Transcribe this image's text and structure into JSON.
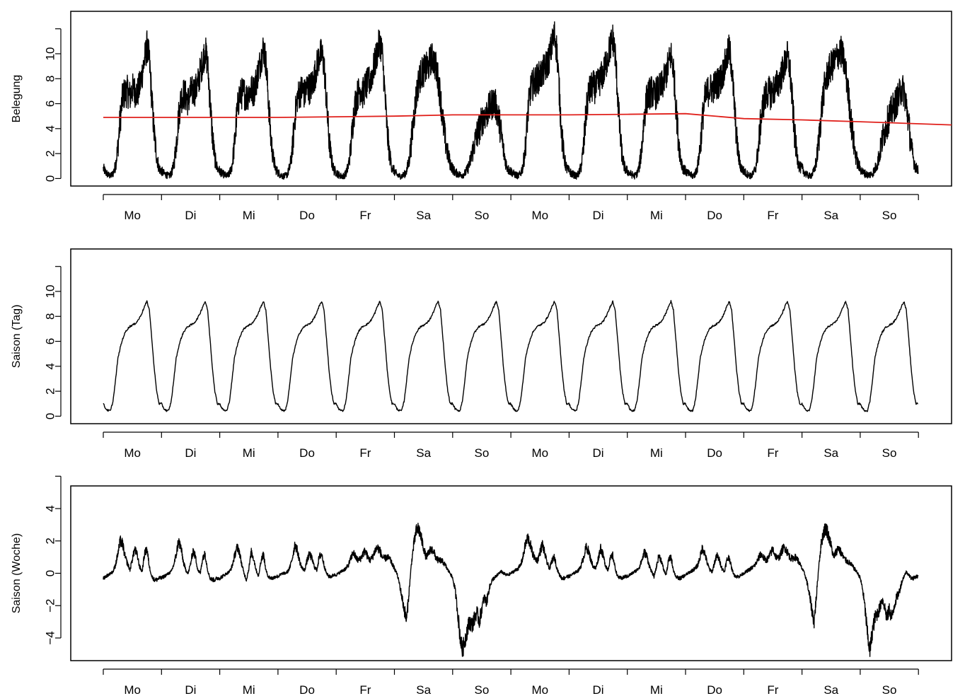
{
  "chart_data": [
    {
      "type": "line",
      "ylabel": "Belegung",
      "yticks": [
        0,
        2,
        4,
        6,
        8,
        10
      ],
      "ylim": [
        -0.6,
        13.4
      ],
      "weekdays": [
        "Mo",
        "Di",
        "Mi",
        "Do",
        "Fr",
        "Sa",
        "So",
        "Mo",
        "Di",
        "Mi",
        "Do",
        "Fr",
        "Sa",
        "So"
      ],
      "grid": false,
      "series": [
        {
          "color": "#000000",
          "day_profiles": [
            [
              0.8,
              0.5,
              0.3,
              0.2,
              0.4,
              1.0,
              2.5,
              4.8,
              6.6,
              6.9,
              7.0,
              6.6,
              7.2,
              7.0,
              6.8,
              7.4,
              8.4,
              9.5,
              10.6,
              9.5,
              6.4,
              3.5,
              1.8,
              0.8
            ],
            [
              0.6,
              0.4,
              0.3,
              0.2,
              0.4,
              1.0,
              2.6,
              4.9,
              6.4,
              6.8,
              6.6,
              6.2,
              6.9,
              7.0,
              7.1,
              7.6,
              8.6,
              9.4,
              10.3,
              9.2,
              6.2,
              3.4,
              1.6,
              0.8
            ],
            [
              0.6,
              0.4,
              0.3,
              0.2,
              0.4,
              1.0,
              2.6,
              5.0,
              6.6,
              6.8,
              6.9,
              6.5,
              6.9,
              7.1,
              7.0,
              7.8,
              8.7,
              9.6,
              10.5,
              9.4,
              6.5,
              3.4,
              1.7,
              0.8
            ],
            [
              0.5,
              0.3,
              0.2,
              0.2,
              0.4,
              1.0,
              2.5,
              5.0,
              6.5,
              6.9,
              7.2,
              6.7,
              7.4,
              7.2,
              7.5,
              8.1,
              9.0,
              9.8,
              10.0,
              9.1,
              6.2,
              3.2,
              1.6,
              0.7
            ],
            [
              0.5,
              0.3,
              0.2,
              0.2,
              0.4,
              1.0,
              2.4,
              4.8,
              6.2,
              6.8,
              7.2,
              6.8,
              7.4,
              7.6,
              7.9,
              8.5,
              9.3,
              10.2,
              11.0,
              10.0,
              7.0,
              3.8,
              1.9,
              0.9
            ],
            [
              0.6,
              0.3,
              0.2,
              0.2,
              0.3,
              0.6,
              1.4,
              3.0,
              5.0,
              6.6,
              7.8,
              8.4,
              8.6,
              8.8,
              9.0,
              9.6,
              9.6,
              9.0,
              8.0,
              6.5,
              4.5,
              3.0,
              2.0,
              1.2
            ],
            [
              0.8,
              0.5,
              0.4,
              0.3,
              0.3,
              0.4,
              0.7,
              1.2,
              2.0,
              2.8,
              3.5,
              4.0,
              4.6,
              5.0,
              5.2,
              5.6,
              5.9,
              6.2,
              5.7,
              4.8,
              3.6,
              2.2,
              1.2,
              0.7
            ],
            [
              0.6,
              0.4,
              0.3,
              0.2,
              0.4,
              1.0,
              2.6,
              5.2,
              7.0,
              7.5,
              7.8,
              8.0,
              8.2,
              8.5,
              8.8,
              9.2,
              9.8,
              10.8,
              11.5,
              10.2,
              6.8,
              3.5,
              1.6,
              0.8
            ],
            [
              0.6,
              0.4,
              0.3,
              0.2,
              0.4,
              1.0,
              2.6,
              5.2,
              6.8,
              7.2,
              7.4,
              7.2,
              7.6,
              8.0,
              8.4,
              9.0,
              9.8,
              10.6,
              11.2,
              10.0,
              6.8,
              3.5,
              1.6,
              0.8
            ],
            [
              0.6,
              0.4,
              0.3,
              0.2,
              0.4,
              1.0,
              2.6,
              5.0,
              6.4,
              6.8,
              7.0,
              6.6,
              6.9,
              7.1,
              7.3,
              7.8,
              8.4,
              9.2,
              9.9,
              8.8,
              6.0,
              3.3,
              1.6,
              0.8
            ],
            [
              0.6,
              0.4,
              0.3,
              0.2,
              0.4,
              1.0,
              2.5,
              4.8,
              6.4,
              6.9,
              7.2,
              7.2,
              7.4,
              7.6,
              7.8,
              8.2,
              8.9,
              9.6,
              10.4,
              9.0,
              6.2,
              3.3,
              1.6,
              0.8
            ],
            [
              0.6,
              0.4,
              0.3,
              0.2,
              0.4,
              1.0,
              2.4,
              4.6,
              6.0,
              6.6,
              7.0,
              6.8,
              7.0,
              7.3,
              7.6,
              8.0,
              8.6,
              9.2,
              9.8,
              8.8,
              6.2,
              3.4,
              1.8,
              0.9
            ],
            [
              0.8,
              0.5,
              0.3,
              0.2,
              0.3,
              0.6,
              1.5,
              3.2,
              5.4,
              7.0,
              8.0,
              8.6,
              9.0,
              9.2,
              9.6,
              10.0,
              10.2,
              9.6,
              8.6,
              7.0,
              5.0,
              3.3,
              2.0,
              1.2
            ],
            [
              0.8,
              0.5,
              0.4,
              0.3,
              0.3,
              0.4,
              0.7,
              1.2,
              2.0,
              3.0,
              3.8,
              4.4,
              5.0,
              5.4,
              5.8,
              6.2,
              6.6,
              7.2,
              7.0,
              5.9,
              4.4,
              2.6,
              1.5,
              0.8
            ]
          ]
        },
        {
          "color": "#e0201b",
          "x": [
            0,
            1,
            2,
            3,
            4,
            5,
            6,
            7,
            8,
            9,
            10,
            11,
            12,
            13,
            14
          ],
          "values": [
            4.9,
            4.9,
            4.9,
            4.9,
            4.95,
            5.0,
            5.1,
            5.1,
            5.1,
            5.15,
            5.2,
            4.8,
            4.7,
            4.55,
            4.3
          ]
        }
      ]
    },
    {
      "type": "line",
      "ylabel": "Saison (Tag)",
      "yticks": [
        0,
        2,
        4,
        6,
        8,
        10
      ],
      "ylim": [
        -0.6,
        13.4
      ],
      "weekdays": [
        "Mo",
        "Di",
        "Mi",
        "Do",
        "Fr",
        "Sa",
        "So",
        "Mo",
        "Di",
        "Mi",
        "Do",
        "Fr",
        "Sa",
        "So"
      ],
      "grid": false,
      "series": [
        {
          "color": "#000000",
          "repeated_daily_profile": [
            1.0,
            0.6,
            0.45,
            0.45,
            1.2,
            2.8,
            4.6,
            5.5,
            6.2,
            6.7,
            7.0,
            7.2,
            7.3,
            7.4,
            7.6,
            7.9,
            8.3,
            8.8,
            9.2,
            8.5,
            6.2,
            3.8,
            2.0,
            1.0
          ],
          "days": 14
        }
      ]
    },
    {
      "type": "line",
      "ylabel": "Saison (Woche)",
      "yticks": [
        -4,
        -2,
        0,
        2,
        4
      ],
      "ylim": [
        -5.4,
        5.4
      ],
      "weekdays": [
        "Mo",
        "Di",
        "Mi",
        "Do",
        "Fr",
        "Sa",
        "So",
        "Mo",
        "Di",
        "Mi",
        "Do",
        "Fr",
        "Sa",
        "So"
      ],
      "grid": false,
      "series": [
        {
          "color": "#000000",
          "day_profiles": [
            [
              -0.3,
              -0.2,
              -0.1,
              0.0,
              0.1,
              0.5,
              1.2,
              2.0,
              1.8,
              1.0,
              0.6,
              0.2,
              0.9,
              1.5,
              1.1,
              0.4,
              0.1,
              1.2,
              1.5,
              0.4,
              -0.2,
              -0.4,
              -0.4,
              -0.3
            ],
            [
              -0.3,
              -0.2,
              -0.1,
              0.0,
              0.1,
              0.5,
              1.1,
              2.0,
              1.6,
              0.7,
              0.2,
              0.0,
              0.6,
              1.4,
              1.0,
              0.2,
              0.0,
              1.0,
              1.2,
              0.2,
              -0.3,
              -0.4,
              -0.4,
              -0.3
            ],
            [
              -0.3,
              -0.2,
              -0.1,
              0.0,
              0.1,
              0.4,
              1.0,
              1.6,
              1.4,
              0.6,
              0.0,
              -0.4,
              0.3,
              1.3,
              0.9,
              0.2,
              -0.2,
              0.8,
              1.2,
              0.2,
              -0.2,
              -0.3,
              -0.3,
              -0.2
            ],
            [
              -0.2,
              -0.1,
              0.0,
              0.0,
              0.1,
              0.4,
              1.0,
              1.8,
              1.4,
              0.7,
              0.3,
              0.2,
              0.8,
              1.2,
              0.9,
              0.4,
              0.2,
              1.0,
              1.2,
              0.5,
              0.0,
              -0.2,
              -0.2,
              -0.1
            ],
            [
              -0.1,
              0.0,
              0.1,
              0.2,
              0.3,
              0.5,
              0.9,
              1.3,
              1.0,
              0.8,
              0.9,
              1.2,
              1.4,
              1.0,
              0.8,
              1.0,
              1.4,
              1.6,
              1.4,
              1.0,
              0.9,
              1.0,
              0.9,
              0.6
            ],
            [
              0.3,
              0.0,
              -0.6,
              -1.4,
              -2.2,
              -2.9,
              -1.2,
              0.6,
              1.8,
              2.6,
              2.8,
              2.2,
              1.6,
              1.0,
              1.2,
              1.5,
              1.4,
              1.0,
              0.8,
              0.8,
              0.7,
              0.5,
              0.2,
              0.0
            ],
            [
              -0.3,
              -1.0,
              -2.3,
              -3.8,
              -4.8,
              -4.2,
              -3.5,
              -3.0,
              -3.2,
              -2.8,
              -2.4,
              -3.0,
              -2.2,
              -1.5,
              -1.8,
              -1.0,
              -0.5,
              -0.3,
              -0.2,
              0.0,
              0.1,
              0.0,
              -0.1,
              -0.1
            ],
            [
              0.0,
              0.1,
              0.2,
              0.3,
              0.5,
              1.0,
              1.8,
              2.2,
              1.8,
              1.2,
              0.9,
              0.8,
              1.3,
              1.8,
              1.2,
              0.6,
              0.3,
              0.8,
              1.0,
              0.3,
              -0.1,
              -0.3,
              -0.3,
              -0.2
            ],
            [
              -0.2,
              -0.1,
              0.0,
              0.1,
              0.2,
              0.5,
              1.0,
              1.6,
              1.4,
              0.8,
              0.4,
              0.3,
              0.9,
              1.6,
              1.1,
              0.5,
              0.2,
              0.9,
              1.1,
              0.3,
              -0.2,
              -0.3,
              -0.3,
              -0.2
            ],
            [
              -0.2,
              -0.1,
              0.0,
              0.1,
              0.2,
              0.4,
              0.8,
              1.3,
              1.1,
              0.5,
              0.1,
              -0.2,
              0.4,
              1.1,
              0.8,
              0.2,
              -0.1,
              0.8,
              1.0,
              0.2,
              -0.2,
              -0.3,
              -0.3,
              -0.2
            ],
            [
              -0.1,
              0.0,
              0.1,
              0.2,
              0.3,
              0.5,
              1.0,
              1.6,
              1.2,
              0.6,
              0.2,
              0.1,
              0.7,
              1.1,
              0.8,
              0.3,
              0.1,
              0.8,
              1.0,
              0.3,
              -0.1,
              -0.2,
              -0.2,
              -0.1
            ],
            [
              0.0,
              0.1,
              0.2,
              0.3,
              0.4,
              0.6,
              0.9,
              1.2,
              1.0,
              0.8,
              0.9,
              1.2,
              1.5,
              1.1,
              0.9,
              1.1,
              1.5,
              1.6,
              1.3,
              1.0,
              0.9,
              1.0,
              0.9,
              0.6
            ],
            [
              0.3,
              0.0,
              -0.5,
              -1.3,
              -2.2,
              -3.0,
              -1.3,
              0.6,
              1.9,
              2.6,
              2.8,
              2.3,
              1.7,
              1.0,
              1.3,
              1.6,
              1.3,
              1.0,
              0.8,
              0.7,
              0.6,
              0.4,
              0.2,
              0.0
            ],
            [
              -0.3,
              -1.0,
              -2.2,
              -3.8,
              -4.8,
              -3.6,
              -2.8,
              -2.5,
              -2.2,
              -1.6,
              -2.0,
              -2.8,
              -2.2,
              -2.8,
              -2.0,
              -1.5,
              -1.2,
              -0.6,
              -0.2,
              0.1,
              -0.1,
              -0.3,
              -0.3,
              -0.2
            ]
          ]
        }
      ]
    }
  ]
}
